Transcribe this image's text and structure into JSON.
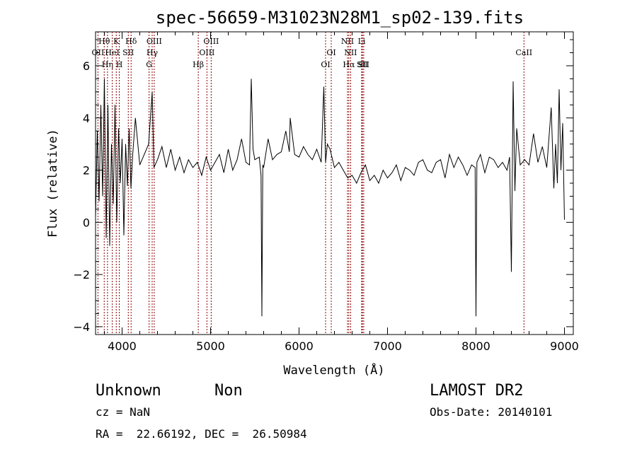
{
  "chart_data": {
    "type": "line",
    "title": "spec-56659-M31023N28M1_sp02-139.fits",
    "xlabel": "Wavelength (Å)",
    "ylabel": "Flux (relative)",
    "xlim": [
      3700,
      9100
    ],
    "ylim": [
      -4.3,
      7.3
    ],
    "x_ticks": [
      4000,
      5000,
      6000,
      7000,
      8000,
      9000
    ],
    "y_ticks": [
      -4,
      -2,
      0,
      2,
      4,
      6
    ],
    "x_tick_labels": [
      "4000",
      "5000",
      "6000",
      "7000",
      "8000",
      "9000"
    ],
    "y_tick_labels": [
      "−4",
      "−2",
      "0",
      "2",
      "4",
      "6"
    ],
    "grid": false,
    "line_color": "#000000",
    "marker_color": "#8b0000",
    "spectral_lines": [
      {
        "label": "OII",
        "wavelength": 3727,
        "row": 2
      },
      {
        "label": "Hθ",
        "wavelength": 3798,
        "row": 1
      },
      {
        "label": "Hη",
        "wavelength": 3835,
        "row": 3
      },
      {
        "label": "HeI",
        "wavelength": 3889,
        "row": 2
      },
      {
        "label": "K",
        "wavelength": 3934,
        "row": 1
      },
      {
        "label": "H",
        "wavelength": 3968,
        "row": 3
      },
      {
        "label": "SII",
        "wavelength": 4070,
        "row": 2
      },
      {
        "label": "Hδ",
        "wavelength": 4102,
        "row": 1
      },
      {
        "label": "G",
        "wavelength": 4305,
        "row": 3
      },
      {
        "label": "Hγ",
        "wavelength": 4340,
        "row": 2
      },
      {
        "label": "OIII",
        "wavelength": 4363,
        "row": 1
      },
      {
        "label": "Hβ",
        "wavelength": 4861,
        "row": 3
      },
      {
        "label": "OIII",
        "wavelength": 4959,
        "row": 2
      },
      {
        "label": "OIII",
        "wavelength": 5007,
        "row": 1
      },
      {
        "label": "OI",
        "wavelength": 6300,
        "row": 3
      },
      {
        "label": "OI",
        "wavelength": 6364,
        "row": 2
      },
      {
        "label": "NII",
        "wavelength": 6548,
        "row": 1
      },
      {
        "label": "Hα",
        "wavelength": 6563,
        "row": 3
      },
      {
        "label": "NII",
        "wavelength": 6583,
        "row": 2
      },
      {
        "label": "Li",
        "wavelength": 6708,
        "row": 1
      },
      {
        "label": "SII",
        "wavelength": 6716,
        "row": 3
      },
      {
        "label": "SII",
        "wavelength": 6731,
        "row": 3
      },
      {
        "label": "CaII",
        "wavelength": 8542,
        "row": 2
      }
    ],
    "series": [
      {
        "x": [
          3700,
          3720,
          3740,
          3760,
          3780,
          3800,
          3820,
          3840,
          3860,
          3880,
          3900,
          3920,
          3940,
          3960,
          3980,
          4000,
          4020,
          4040,
          4060,
          4080,
          4100,
          4120,
          4150,
          4200,
          4250,
          4300,
          4340,
          4360,
          4400,
          4450,
          4500,
          4550,
          4600,
          4650,
          4700,
          4750,
          4800,
          4850,
          4900,
          4950,
          5000,
          5050,
          5100,
          5150,
          5200,
          5250,
          5300,
          5350,
          5400,
          5440,
          5460,
          5480,
          5500,
          5550,
          5570,
          5580,
          5590,
          5600,
          5650,
          5700,
          5750,
          5800,
          5850,
          5890,
          5900,
          5950,
          6000,
          6050,
          6100,
          6150,
          6200,
          6250,
          6280,
          6300,
          6320,
          6350,
          6400,
          6450,
          6500,
          6550,
          6600,
          6650,
          6700,
          6750,
          6800,
          6850,
          6900,
          6950,
          7000,
          7050,
          7100,
          7150,
          7200,
          7250,
          7300,
          7350,
          7400,
          7450,
          7500,
          7550,
          7600,
          7650,
          7700,
          7750,
          7800,
          7850,
          7900,
          7950,
          7990,
          8000,
          8010,
          8050,
          8100,
          8150,
          8200,
          8250,
          8300,
          8350,
          8380,
          8400,
          8420,
          8440,
          8460,
          8500,
          8550,
          8600,
          8650,
          8700,
          8750,
          8800,
          8850,
          8880,
          8900,
          8920,
          8940,
          8960,
          8980,
          9000
        ],
        "y": [
          0.2,
          3.5,
          0.8,
          4.5,
          1.0,
          5.5,
          -0.6,
          4.5,
          -0.9,
          3.0,
          0.7,
          4.5,
          0.0,
          3.6,
          1.5,
          3.2,
          -0.5,
          3.0,
          1.4,
          3.6,
          1.3,
          2.6,
          4.0,
          2.2,
          2.6,
          3.0,
          5.0,
          2.1,
          2.4,
          2.9,
          2.1,
          2.8,
          2.0,
          2.5,
          1.9,
          2.4,
          2.1,
          2.3,
          1.8,
          2.5,
          2.0,
          2.3,
          2.6,
          1.9,
          2.8,
          2.0,
          2.4,
          3.2,
          2.3,
          2.2,
          5.5,
          2.8,
          2.4,
          2.5,
          1.8,
          -3.6,
          2.2,
          2.1,
          3.2,
          2.4,
          2.6,
          2.7,
          3.5,
          2.7,
          4.0,
          2.6,
          2.5,
          2.9,
          2.6,
          2.4,
          2.8,
          2.3,
          5.2,
          2.3,
          3.0,
          2.8,
          2.1,
          2.3,
          2.0,
          1.7,
          1.8,
          1.5,
          1.9,
          2.2,
          1.6,
          1.8,
          1.5,
          2.0,
          1.7,
          1.9,
          2.2,
          1.6,
          2.1,
          2.0,
          1.8,
          2.3,
          2.4,
          2.0,
          1.9,
          2.3,
          2.4,
          1.7,
          2.6,
          2.1,
          2.5,
          2.2,
          1.8,
          2.2,
          2.1,
          -3.6,
          2.3,
          2.6,
          1.9,
          2.5,
          2.4,
          2.1,
          2.3,
          2.0,
          2.5,
          -1.9,
          5.4,
          1.2,
          3.6,
          2.2,
          2.4,
          2.2,
          3.4,
          2.3,
          2.9,
          2.1,
          4.4,
          1.3,
          3.0,
          1.5,
          5.1,
          2.0,
          3.8,
          0.1
        ]
      }
    ]
  },
  "footer": {
    "class_label": "Unknown",
    "subclass_label": "Non",
    "survey_label": "LAMOST DR2",
    "redshift_text": "cz = NaN",
    "obs_date_text": "Obs-Date: 20140101",
    "coords_text": "RA =  22.66192, DEC =  26.50984"
  }
}
